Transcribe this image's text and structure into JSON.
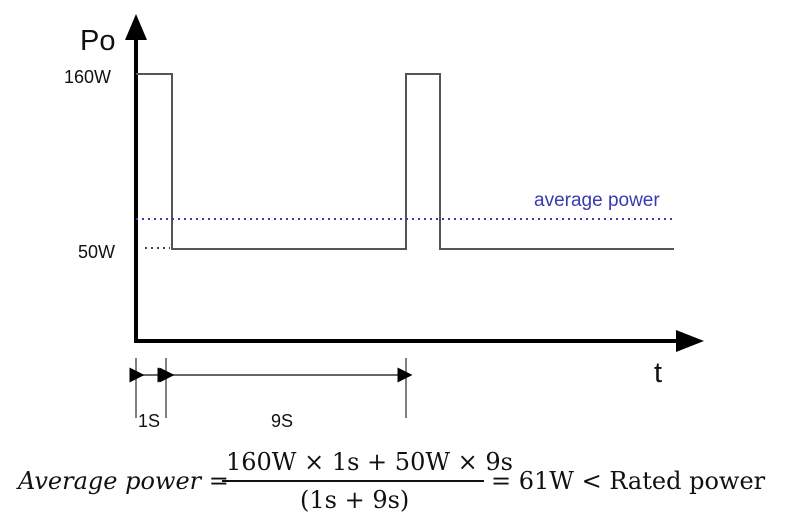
{
  "diagram": {
    "y_axis_label": "Po",
    "x_axis_label": "t",
    "y_ticks": [
      {
        "label": "160W",
        "value": 160
      },
      {
        "label": "50W",
        "value": 50
      }
    ],
    "average_line_label": "average power",
    "average_value": 61,
    "pulse_duration_label": "1S",
    "pulse_duration_s": 1,
    "low_duration_label": "9S",
    "low_duration_s": 9,
    "high_power_w": 160,
    "low_power_w": 50,
    "colors": {
      "signal": "#555555",
      "average": "#3a3ab0",
      "axis": "#000000"
    }
  },
  "formula": {
    "lhs": "Average power =",
    "numerator": "160W × 1s + 50W × 9s",
    "denominator": "(1s + 9s)",
    "rhs": "= 61W < Rated power"
  }
}
